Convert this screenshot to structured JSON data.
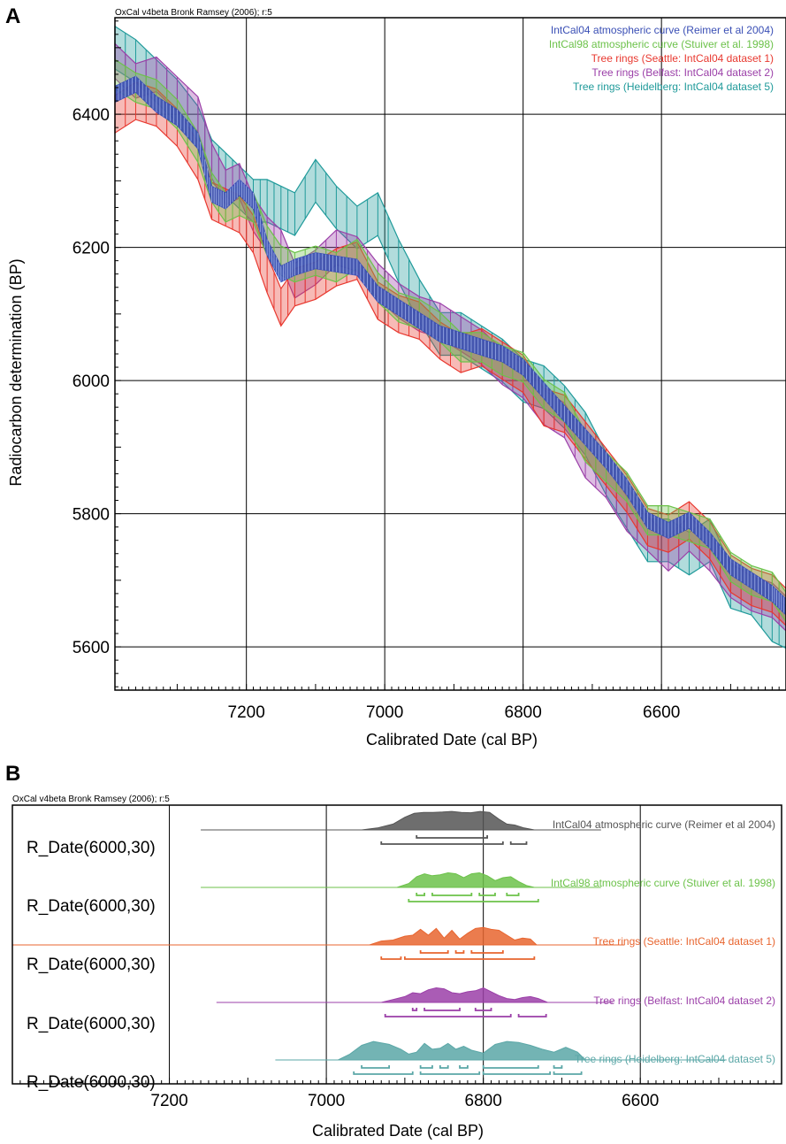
{
  "chart_data": [
    {
      "panel": "A",
      "type": "line",
      "header": "OxCal v4beta Bronk Ramsey (2006); r:5",
      "xlabel": "Calibrated Date (cal BP)",
      "ylabel": "Radiocarbon determination (BP)",
      "xlim": [
        7390,
        6420
      ],
      "ylim": [
        5535,
        6545
      ],
      "x_ticks": [
        7200,
        7000,
        6800,
        6600
      ],
      "y_ticks": [
        5600,
        5800,
        6000,
        6200,
        6400
      ],
      "grid": true,
      "legend_position": "top-right",
      "series": [
        {
          "name": "IntCal04 atmospheric curve (Reimer et al 2004)",
          "color": "#3a4fb5",
          "band": 12,
          "x": [
            7390,
            7360,
            7330,
            7300,
            7270,
            7250,
            7230,
            7210,
            7190,
            7170,
            7150,
            7130,
            7100,
            7070,
            7040,
            7010,
            6980,
            6950,
            6920,
            6890,
            6860,
            6830,
            6800,
            6770,
            6740,
            6710,
            6680,
            6650,
            6620,
            6590,
            6560,
            6530,
            6500,
            6470,
            6440,
            6420
          ],
          "y": [
            6430,
            6445,
            6415,
            6395,
            6360,
            6280,
            6270,
            6290,
            6270,
            6200,
            6160,
            6170,
            6180,
            6175,
            6170,
            6130,
            6110,
            6090,
            6070,
            6060,
            6050,
            6040,
            6020,
            5985,
            5950,
            5915,
            5880,
            5840,
            5790,
            5775,
            5790,
            5760,
            5720,
            5700,
            5680,
            5660
          ]
        },
        {
          "name": "IntCal98 atmospheric curve (Stuiver et al. 1998)",
          "color": "#6cc24a",
          "band": 22,
          "x": [
            7390,
            7360,
            7330,
            7300,
            7270,
            7250,
            7230,
            7210,
            7190,
            7170,
            7150,
            7130,
            7100,
            7070,
            7040,
            7010,
            6980,
            6950,
            6920,
            6890,
            6860,
            6830,
            6800,
            6770,
            6740,
            6710,
            6680,
            6650,
            6620,
            6590,
            6560,
            6530,
            6500,
            6470,
            6440,
            6420
          ],
          "y": [
            6460,
            6440,
            6430,
            6400,
            6350,
            6290,
            6260,
            6270,
            6260,
            6210,
            6180,
            6170,
            6180,
            6170,
            6190,
            6140,
            6110,
            6100,
            6080,
            6050,
            6050,
            6030,
            6020,
            5980,
            5960,
            5900,
            5870,
            5840,
            5790,
            5790,
            5780,
            5770,
            5720,
            5700,
            5690,
            5660
          ]
        },
        {
          "name": "Tree rings (Seattle: IntCal04 dataset 1)",
          "color": "#e8382f",
          "band": 28,
          "x": [
            7390,
            7360,
            7330,
            7300,
            7270,
            7250,
            7230,
            7210,
            7190,
            7170,
            7150,
            7130,
            7100,
            7070,
            7040,
            7010,
            6980,
            6950,
            6920,
            6890,
            6860,
            6830,
            6800,
            6770,
            6740,
            6710,
            6680,
            6650,
            6620,
            6590,
            6560,
            6530,
            6500,
            6470,
            6440,
            6420
          ],
          "y": [
            6400,
            6420,
            6410,
            6380,
            6330,
            6270,
            6260,
            6250,
            6220,
            6160,
            6110,
            6140,
            6150,
            6170,
            6180,
            6120,
            6100,
            6090,
            6060,
            6040,
            6050,
            6030,
            6010,
            5960,
            5950,
            5910,
            5870,
            5830,
            5780,
            5770,
            5790,
            5760,
            5710,
            5690,
            5680,
            5660
          ]
        },
        {
          "name": "Tree rings (Belfast: IntCal04 dataset 2)",
          "color": "#9b3fa8",
          "band": 26,
          "x": [
            7390,
            7360,
            7330,
            7300,
            7270,
            7250,
            7230,
            7210,
            7190,
            7170,
            7150,
            7130,
            7100,
            7070,
            7040,
            7010,
            6980,
            6950,
            6920,
            6890,
            6860,
            6830,
            6800,
            6770,
            6740,
            6710,
            6680,
            6650,
            6620,
            6590,
            6560,
            6530,
            6500,
            6470,
            6440,
            6420
          ],
          "y": [
            6480,
            6450,
            6460,
            6430,
            6400,
            6330,
            6290,
            6300,
            6250,
            6220,
            6200,
            6150,
            6170,
            6200,
            6190,
            6150,
            6120,
            6100,
            6090,
            6070,
            6050,
            6020,
            6000,
            5960,
            5940,
            5880,
            5850,
            5800,
            5770,
            5740,
            5770,
            5740,
            5700,
            5680,
            5670,
            5650
          ]
        },
        {
          "name": "Tree rings (Heidelberg: IntCal04 dataset 5)",
          "color": "#1f9a9a",
          "band": 32,
          "x": [
            7390,
            7360,
            7330,
            7300,
            7270,
            7250,
            7230,
            7210,
            7190,
            7170,
            7150,
            7130,
            7100,
            7070,
            7040,
            7010,
            6980,
            6950,
            6920,
            6890,
            6860,
            6830,
            6800,
            6770,
            6740,
            6710,
            6680,
            6650,
            6620,
            6590,
            6560,
            6530,
            6500,
            6470,
            6440,
            6420
          ],
          "y": [
            6500,
            6480,
            6450,
            6420,
            6380,
            6330,
            6310,
            6290,
            6270,
            6270,
            6260,
            6250,
            6300,
            6260,
            6230,
            6250,
            6180,
            6120,
            6070,
            6070,
            6050,
            6030,
            6000,
            5990,
            5960,
            5920,
            5860,
            5810,
            5760,
            5760,
            5740,
            5760,
            5690,
            5680,
            5640,
            5630
          ]
        }
      ]
    },
    {
      "panel": "B",
      "type": "area",
      "header": "OxCal v4beta Bronk Ramsey (2006); r:5",
      "xlabel": "Calibrated Date (cal BP)",
      "xlim": [
        7400,
        6420
      ],
      "x_ticks": [
        7200,
        7000,
        6800,
        6600
      ],
      "grid": true,
      "rows": [
        {
          "label": "R_Date(6000,30)",
          "name": "IntCal04 atmospheric curve (Reimer et al 2004)",
          "color": "#555555",
          "line_range": [
            7160,
            6650
          ],
          "x": [
            6955,
            6935,
            6915,
            6900,
            6888,
            6876,
            6864,
            6852,
            6840,
            6828,
            6816,
            6804,
            6792,
            6780,
            6770,
            6760,
            6748,
            6735
          ],
          "density": [
            0,
            0.1,
            0.3,
            0.65,
            0.85,
            0.9,
            0.9,
            0.92,
            0.95,
            0.9,
            0.88,
            0.95,
            0.9,
            0.55,
            0.3,
            0.25,
            0.1,
            0
          ],
          "brackets_68": [
            [
              6885,
              6795
            ]
          ],
          "brackets_95": [
            [
              6930,
              6775
            ],
            [
              6765,
              6745
            ]
          ]
        },
        {
          "label": "R_Date(6000,30)",
          "name": "IntCal98 atmospheric curve (Stuiver et al. 1998)",
          "color": "#6cc24a",
          "line_range": [
            7160,
            6650
          ],
          "x": [
            6910,
            6895,
            6885,
            6875,
            6865,
            6855,
            6845,
            6835,
            6825,
            6815,
            6805,
            6795,
            6785,
            6775,
            6765,
            6755,
            6745,
            6735
          ],
          "density": [
            0,
            0.2,
            0.55,
            0.7,
            0.6,
            0.65,
            0.75,
            0.7,
            0.5,
            0.7,
            0.75,
            0.6,
            0.35,
            0.5,
            0.55,
            0.3,
            0.1,
            0
          ],
          "brackets_68": [
            [
              6885,
              6875
            ],
            [
              6865,
              6815
            ],
            [
              6805,
              6785
            ],
            [
              6770,
              6755
            ]
          ],
          "brackets_95": [
            [
              6895,
              6730
            ]
          ]
        },
        {
          "label": "R_Date(6000,30)",
          "name": "Tree rings (Seattle: IntCal04 dataset 1)",
          "color": "#e8652f",
          "line_range": [
            7400,
            6620
          ],
          "x": [
            6945,
            6930,
            6915,
            6900,
            6890,
            6880,
            6870,
            6860,
            6850,
            6840,
            6830,
            6820,
            6810,
            6800,
            6790,
            6780,
            6770,
            6760,
            6750,
            6740,
            6732
          ],
          "density": [
            0,
            0.2,
            0.25,
            0.45,
            0.5,
            0.8,
            0.5,
            0.85,
            0.35,
            0.75,
            0.3,
            0.6,
            0.85,
            0.9,
            0.8,
            0.75,
            0.5,
            0.25,
            0.35,
            0.3,
            0
          ],
          "brackets_68": [
            [
              6880,
              6845
            ],
            [
              6835,
              6825
            ],
            [
              6815,
              6775
            ]
          ],
          "brackets_95": [
            [
              6930,
              6905
            ],
            [
              6900,
              6735
            ]
          ]
        },
        {
          "label": "R_Date(6000,30)",
          "name": "Tree rings (Belfast: IntCal04 dataset 2)",
          "color": "#9b3fa8",
          "line_range": [
            7140,
            6635
          ],
          "x": [
            6930,
            6915,
            6900,
            6890,
            6880,
            6870,
            6860,
            6850,
            6840,
            6830,
            6820,
            6810,
            6800,
            6790,
            6780,
            6770,
            6760,
            6750,
            6740,
            6730,
            6718
          ],
          "density": [
            0,
            0.15,
            0.3,
            0.5,
            0.45,
            0.65,
            0.75,
            0.7,
            0.5,
            0.45,
            0.55,
            0.6,
            0.75,
            0.55,
            0.35,
            0.2,
            0.15,
            0.25,
            0.3,
            0.2,
            0
          ],
          "brackets_68": [
            [
              6890,
              6885
            ],
            [
              6875,
              6830
            ],
            [
              6810,
              6790
            ]
          ],
          "brackets_95": [
            [
              6925,
              6765
            ],
            [
              6755,
              6720
            ]
          ]
        },
        {
          "label": "R_Date(6000,30)",
          "name": "Tree rings (Heidelberg: IntCal04 dataset 5)",
          "color": "#5ba7a7",
          "line_range": [
            7065,
            6490
          ],
          "x": [
            6985,
            6970,
            6955,
            6940,
            6920,
            6905,
            6895,
            6885,
            6875,
            6865,
            6855,
            6845,
            6835,
            6825,
            6815,
            6800,
            6785,
            6770,
            6755,
            6740,
            6725,
            6710,
            6695,
            6680,
            6670
          ],
          "density": [
            0,
            0.3,
            0.75,
            0.95,
            0.8,
            0.55,
            0.3,
            0.4,
            0.85,
            0.55,
            0.6,
            0.85,
            0.55,
            0.7,
            0.5,
            0.35,
            0.8,
            0.95,
            0.9,
            0.75,
            0.55,
            0.4,
            0.65,
            0.4,
            0
          ],
          "brackets_68": [
            [
              6955,
              6920
            ],
            [
              6880,
              6865
            ],
            [
              6855,
              6845
            ],
            [
              6830,
              6820
            ],
            [
              6800,
              6730
            ],
            [
              6710,
              6700
            ]
          ],
          "brackets_95": [
            [
              6965,
              6890
            ],
            [
              6880,
              6805
            ],
            [
              6800,
              6715
            ],
            [
              6710,
              6675
            ]
          ]
        }
      ]
    }
  ],
  "panel_a": {
    "letter": "A"
  },
  "panel_b": {
    "letter": "B"
  }
}
